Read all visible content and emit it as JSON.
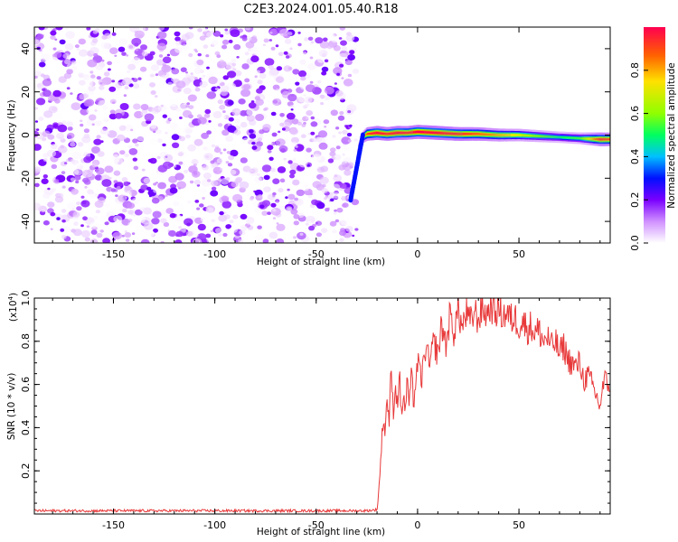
{
  "title": "C2E3.2024.001.05.40.R18",
  "chart_data": [
    {
      "type": "heatmap",
      "xlabel": "Height of straight line (km)",
      "ylabel": "Frequency (Hz)",
      "xlim": [
        -189,
        95
      ],
      "ylim": [
        -50,
        50
      ],
      "xticks": [
        -150,
        -100,
        -50,
        0,
        50
      ],
      "yticks": [
        -40,
        -20,
        0,
        20,
        40
      ],
      "colorbar": {
        "label": "Normalized spectral amplitude",
        "range": [
          0,
          1
        ],
        "ticks": [
          0.0,
          0.2,
          0.4,
          0.6,
          0.8
        ],
        "colormap": [
          "#ffffff",
          "#d090ff",
          "#7a00ff",
          "#0010ff",
          "#00c0ff",
          "#00ff60",
          "#90ff00",
          "#ffe000",
          "#ff6000",
          "#ff0050"
        ]
      },
      "noise_region": {
        "x": [
          -189,
          -30
        ],
        "y": [
          -50,
          50
        ],
        "amplitude_range": [
          0.0,
          0.2
        ]
      },
      "signal_ridge": {
        "x": [
          -33,
          -31,
          -29,
          -27,
          -25,
          -20,
          -15,
          -10,
          -5,
          0,
          10,
          20,
          30,
          40,
          50,
          60,
          70,
          80,
          90,
          95
        ],
        "frequency": [
          -28,
          -18,
          -6,
          -1,
          0.5,
          1,
          0.5,
          1,
          1,
          1.5,
          1,
          0.5,
          0.5,
          0,
          0,
          -0.5,
          -1,
          -1.5,
          -2,
          -2
        ],
        "amplitude": [
          0.3,
          0.35,
          0.45,
          0.6,
          0.9,
          1.0,
          0.95,
          1.0,
          0.95,
          1.0,
          1.0,
          0.95,
          0.9,
          0.8,
          0.7,
          0.6,
          0.5,
          0.55,
          0.95,
          0.9
        ]
      }
    },
    {
      "type": "line",
      "xlabel": "Height of straight line (km)",
      "ylabel": "SNR (10 * v/v)",
      "yscale_label": "(x10",
      "yscale_exp": "4",
      "yscale_close": ")",
      "xlim": [
        -189,
        95
      ],
      "ylim": [
        0,
        1.0
      ],
      "xticks": [
        -150,
        -100,
        -50,
        0,
        50
      ],
      "yticks": [
        0.2,
        0.4,
        0.6,
        0.8,
        1.0
      ],
      "color": "#e8393a",
      "series": [
        {
          "x": [
            -189,
            -150,
            -100,
            -50,
            -25,
            -20,
            -19,
            -18,
            -17,
            -16,
            -15,
            -14,
            -13,
            -12,
            -11,
            -10,
            -9,
            -8,
            -7,
            -6,
            -5,
            -4,
            -3,
            -2,
            -1,
            0,
            2,
            4,
            6,
            8,
            10,
            12,
            14,
            16,
            18,
            20,
            22,
            24,
            26,
            28,
            30,
            32,
            34,
            36,
            38,
            40,
            42,
            44,
            46,
            48,
            50,
            52,
            54,
            56,
            58,
            60,
            62,
            64,
            66,
            68,
            70,
            72,
            74,
            76,
            78,
            80,
            82,
            84,
            86,
            88,
            90,
            92,
            95
          ],
          "y": [
            0.015,
            0.015,
            0.015,
            0.015,
            0.015,
            0.02,
            0.12,
            0.28,
            0.45,
            0.38,
            0.55,
            0.42,
            0.68,
            0.47,
            0.6,
            0.5,
            0.66,
            0.45,
            0.55,
            0.48,
            0.62,
            0.5,
            0.65,
            0.52,
            0.6,
            0.7,
            0.62,
            0.78,
            0.68,
            0.8,
            0.74,
            0.88,
            0.78,
            0.92,
            0.84,
            0.95,
            0.86,
            0.93,
            0.88,
            0.94,
            0.9,
            0.96,
            0.92,
            0.97,
            0.93,
            0.95,
            0.92,
            0.93,
            0.9,
            0.91,
            0.88,
            0.89,
            0.86,
            0.87,
            0.84,
            0.85,
            0.8,
            0.82,
            0.77,
            0.8,
            0.74,
            0.78,
            0.72,
            0.7,
            0.68,
            0.7,
            0.62,
            0.64,
            0.6,
            0.55,
            0.5,
            0.62,
            0.6
          ]
        }
      ]
    }
  ]
}
